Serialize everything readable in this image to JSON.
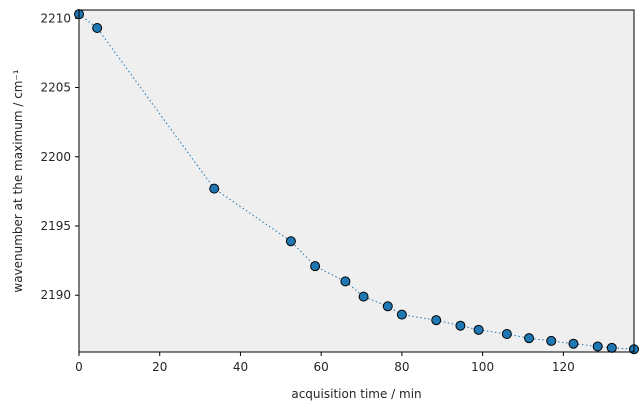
{
  "chart_data": {
    "type": "scatter",
    "title": "",
    "xlabel": "acquisition time / min",
    "ylabel": "wavenumber at the maximum / cm⁻¹",
    "xlim": [
      0,
      137.5
    ],
    "ylim": [
      2185.9,
      2210.6
    ],
    "xticks": [
      0,
      20,
      40,
      60,
      80,
      100,
      120
    ],
    "yticks": [
      2190,
      2195,
      2200,
      2205,
      2210
    ],
    "grid": false,
    "plot_background": "#efefef",
    "marker_color": "#1f77b4",
    "marker_edge_color": "#000000",
    "line_color": "#1f77b4",
    "line_style": "dotted",
    "series": [
      {
        "x": [
          0,
          4.5,
          33.5,
          52.5,
          58.5,
          66,
          70.5,
          76.5,
          80,
          88.5,
          94.5,
          99,
          106,
          111.5,
          117,
          122.5,
          128.5,
          132,
          137.5
        ],
        "y": [
          2210.3,
          2209.3,
          2197.7,
          2193.9,
          2192.1,
          2191.0,
          2189.9,
          2189.2,
          2188.6,
          2188.2,
          2187.8,
          2187.5,
          2187.2,
          2186.9,
          2186.7,
          2186.5,
          2186.3,
          2186.2,
          2186.1
        ]
      }
    ]
  }
}
